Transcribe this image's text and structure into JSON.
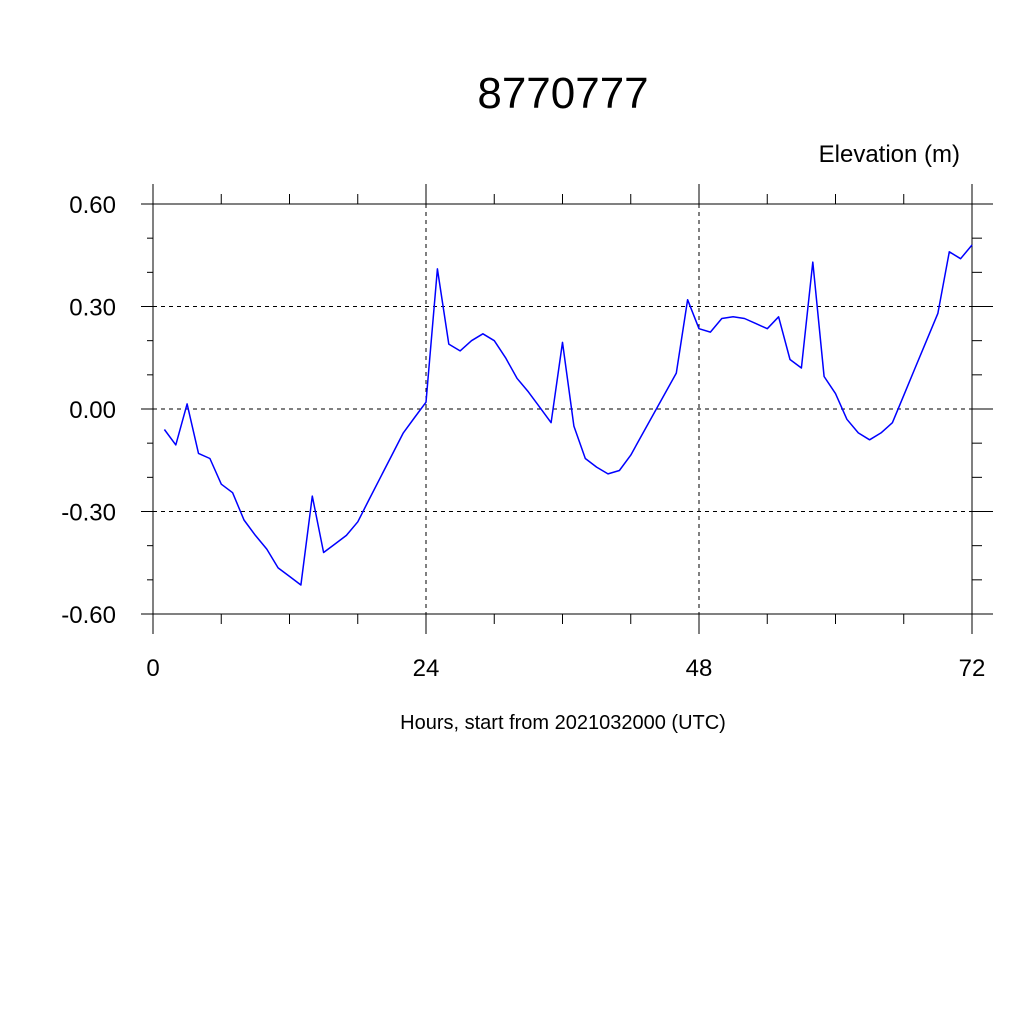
{
  "chart_data": {
    "type": "line",
    "title": "8770777",
    "unit_label": "Elevation (m)",
    "xlabel": "Hours, start from 2021032000 (UTC)",
    "ylabel": "",
    "xlim": [
      0,
      72
    ],
    "ylim": [
      -0.6,
      0.6
    ],
    "x_ticks": [
      0,
      24,
      48,
      72
    ],
    "x_tick_labels": [
      "0",
      "24",
      "48",
      "72"
    ],
    "y_ticks": [
      -0.6,
      -0.3,
      0.0,
      0.3,
      0.6
    ],
    "y_tick_labels": [
      "-0.60",
      "-0.30",
      "0.00",
      "0.30",
      "0.60"
    ],
    "grid": true,
    "line_color": "#0000ff",
    "series": [
      {
        "x": [
          1,
          2,
          3,
          4,
          5,
          6,
          7,
          8,
          9,
          10,
          11,
          12,
          13,
          14,
          15,
          16,
          17,
          18,
          19,
          20,
          21,
          22,
          23,
          24,
          25,
          26,
          27,
          28,
          29,
          30,
          31,
          32,
          33,
          34,
          35,
          36,
          37,
          38,
          39,
          40,
          41,
          42,
          43,
          44,
          45,
          46,
          47,
          48,
          49,
          50,
          51,
          52,
          53,
          54,
          55,
          56,
          57,
          58,
          59,
          60,
          61,
          62,
          63,
          64,
          65,
          66,
          67,
          68,
          69,
          70,
          71,
          72
        ],
        "values": [
          -0.06,
          -0.105,
          0.015,
          -0.13,
          -0.145,
          -0.22,
          -0.245,
          -0.325,
          -0.37,
          -0.41,
          -0.465,
          -0.49,
          -0.515,
          -0.255,
          -0.42,
          -0.395,
          -0.37,
          -0.33,
          -0.265,
          -0.2,
          -0.135,
          -0.07,
          -0.025,
          0.02,
          0.41,
          0.19,
          0.17,
          0.2,
          0.22,
          0.2,
          0.15,
          0.09,
          0.05,
          0.005,
          -0.04,
          0.195,
          -0.05,
          -0.145,
          -0.17,
          -0.19,
          -0.18,
          -0.135,
          -0.075,
          -0.015,
          0.045,
          0.105,
          0.32,
          0.235,
          0.225,
          0.265,
          0.27,
          0.265,
          0.25,
          0.235,
          0.27,
          0.145,
          0.12,
          0.43,
          0.095,
          0.045,
          -0.03,
          -0.07,
          -0.09,
          -0.07,
          -0.04,
          0.04,
          0.12,
          0.2,
          0.28,
          0.46,
          0.44,
          0.48
        ]
      }
    ]
  }
}
